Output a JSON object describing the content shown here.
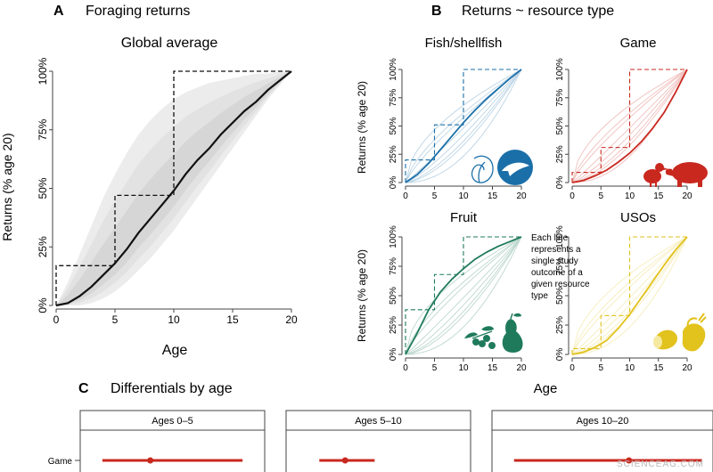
{
  "panel_a": {
    "letter": "A",
    "title": "Foraging returns",
    "subtitle": "Global average",
    "ylabel": "Returns (% age 20)",
    "xlabel": "Age"
  },
  "panel_b": {
    "letter": "B",
    "title": "Returns ~ resource type",
    "xlabel": "Age",
    "note": [
      "Each line",
      "represents a",
      "single study",
      "outcome of a",
      "given resource",
      "type"
    ]
  },
  "panel_c": {
    "letter": "C",
    "title": "Differentials by age"
  },
  "watermark": "SCIENCEAG.COM",
  "colors": {
    "global": "#111111",
    "fish": "#1b6fa8",
    "game": "#c9281f",
    "fruit": "#1f7a5c",
    "usos": "#e2c21c",
    "envelope": "#e6e6e6",
    "red_bar": "#c9281f"
  },
  "icons": {
    "fish": [
      "shell-icon",
      "dolphin-icon"
    ],
    "game": [
      "bird-icon",
      "tapir-icon"
    ],
    "fruit": [
      "berries-icon",
      "pear-icon"
    ],
    "usos": [
      "tuber-icon",
      "root-icon"
    ]
  },
  "chart_data": [
    {
      "id": "global",
      "type": "line",
      "title": "Global average",
      "xlabel": "Age",
      "ylabel": "Returns (% age 20)",
      "xlim": [
        0,
        20
      ],
      "ylim": [
        0,
        100
      ],
      "x_ticks": [
        0,
        5,
        10,
        15,
        20
      ],
      "y_ticks": [
        "0%",
        "25%",
        "50%",
        "75%",
        "100%"
      ],
      "series": [
        {
          "x": [
            0,
            1,
            2,
            3,
            4,
            5,
            6,
            7,
            8,
            9,
            10,
            11,
            12,
            13,
            14,
            15,
            16,
            17,
            18,
            19,
            20
          ],
          "values": [
            0,
            1,
            4,
            8,
            13,
            18,
            24,
            31,
            37,
            43,
            49,
            56,
            62,
            67,
            73,
            78,
            83,
            87,
            92,
            96,
            100
          ]
        }
      ],
      "step": {
        "x": [
          0,
          5,
          10,
          20
        ],
        "values": [
          17,
          47,
          100,
          100
        ]
      },
      "band": {
        "lower": [
          0,
          0,
          0,
          1,
          3,
          6,
          10,
          15,
          20,
          26,
          32,
          39,
          46,
          53,
          60,
          67,
          74,
          81,
          88,
          94,
          100
        ],
        "upper": [
          0,
          10,
          22,
          34,
          46,
          56,
          65,
          73,
          79,
          84,
          88,
          91,
          93,
          95,
          96,
          97,
          98,
          99,
          99,
          100,
          100
        ]
      }
    },
    {
      "id": "fish",
      "type": "line",
      "title": "Fish/shellfish",
      "xlim": [
        0,
        20
      ],
      "ylim": [
        0,
        100
      ],
      "x_ticks": [
        0,
        5,
        10,
        15,
        20
      ],
      "y_ticks": [
        "0%",
        "25%",
        "50%",
        "75%",
        "100%"
      ],
      "series": [
        {
          "x": [
            0,
            2,
            4,
            6,
            8,
            10,
            12,
            14,
            16,
            18,
            20
          ],
          "values": [
            0,
            7,
            17,
            29,
            41,
            53,
            64,
            74,
            83,
            92,
            100
          ]
        }
      ],
      "step": {
        "x": [
          0,
          5,
          10,
          20
        ],
        "values": [
          20,
          51,
          100,
          100
        ]
      }
    },
    {
      "id": "game",
      "type": "line",
      "title": "Game",
      "xlim": [
        0,
        20
      ],
      "ylim": [
        0,
        100
      ],
      "x_ticks": [
        0,
        5,
        10,
        15,
        20
      ],
      "y_ticks": [
        "0%",
        "25%",
        "50%",
        "75%",
        "100%"
      ],
      "series": [
        {
          "x": [
            0,
            2,
            4,
            6,
            8,
            10,
            12,
            14,
            16,
            18,
            20
          ],
          "values": [
            0,
            2,
            6,
            11,
            18,
            26,
            36,
            48,
            62,
            80,
            100
          ]
        }
      ],
      "step": {
        "x": [
          0,
          5,
          10,
          20
        ],
        "values": [
          9,
          31,
          100,
          100
        ]
      }
    },
    {
      "id": "fruit",
      "type": "line",
      "title": "Fruit",
      "xlim": [
        0,
        20
      ],
      "ylim": [
        0,
        100
      ],
      "x_ticks": [
        0,
        5,
        10,
        15,
        20
      ],
      "y_ticks": [
        "0%",
        "25%",
        "50%",
        "75%",
        "100%"
      ],
      "series": [
        {
          "x": [
            0,
            2,
            4,
            6,
            8,
            10,
            12,
            14,
            16,
            18,
            20
          ],
          "values": [
            0,
            18,
            38,
            53,
            64,
            73,
            81,
            87,
            92,
            96,
            100
          ]
        }
      ],
      "step": {
        "x": [
          0,
          5,
          10,
          20
        ],
        "values": [
          38,
          68,
          100,
          100
        ]
      }
    },
    {
      "id": "usos",
      "type": "line",
      "title": "USOs",
      "xlim": [
        0,
        20
      ],
      "ylim": [
        0,
        100
      ],
      "x_ticks": [
        0,
        5,
        10,
        15,
        20
      ],
      "y_ticks": [
        "0%",
        "25%",
        "50%",
        "75%",
        "100%"
      ],
      "series": [
        {
          "x": [
            0,
            2,
            4,
            6,
            8,
            10,
            12,
            14,
            16,
            18,
            20
          ],
          "values": [
            0,
            2,
            6,
            12,
            22,
            34,
            48,
            62,
            76,
            89,
            100
          ]
        }
      ],
      "step": {
        "x": [
          0,
          5,
          10,
          20
        ],
        "values": [
          5,
          33,
          100,
          100
        ]
      }
    },
    {
      "id": "differentials",
      "type": "scatter",
      "title": "Differentials by age",
      "facets": [
        "Ages 0–5",
        "Ages 5–10",
        "Ages 10–20"
      ],
      "rows": [
        "Game"
      ],
      "points": [
        {
          "facet": "Ages 0–5",
          "row": "Game",
          "estimate": 0.38,
          "low": 0.12,
          "high": 0.88
        },
        {
          "facet": "Ages 5–10",
          "row": "Game",
          "estimate": 0.32,
          "low": 0.18,
          "high": 0.48
        },
        {
          "facet": "Ages 10–20",
          "row": "Game",
          "estimate": 0.62,
          "low": 0.1,
          "high": 0.95
        }
      ]
    }
  ]
}
